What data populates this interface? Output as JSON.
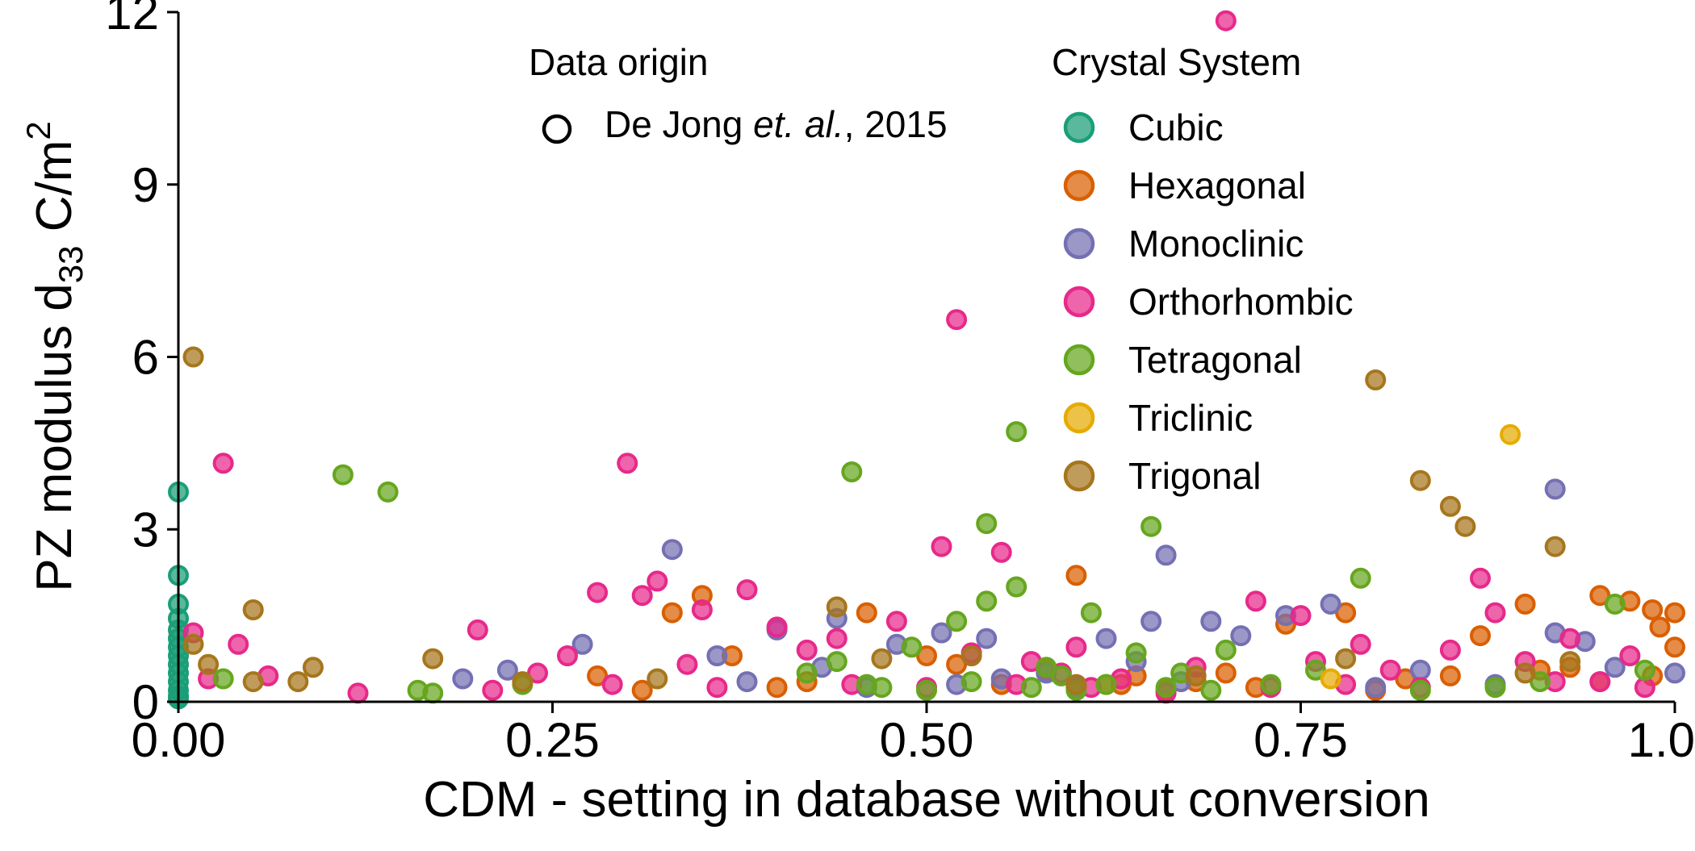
{
  "chart_data": {
    "type": "scatter",
    "title": "",
    "xlabel": "CDM - setting in database without conversion",
    "ylabel": {
      "prefix": "PZ modulus d",
      "sub": "33",
      "middle": " C/m",
      "sup": "2"
    },
    "xlim": [
      0,
      1
    ],
    "ylim": [
      0,
      12
    ],
    "xticks": [
      "0.00",
      "0.25",
      "0.50",
      "0.75",
      "1.00"
    ],
    "yticks": [
      "0",
      "3",
      "6",
      "9",
      "12"
    ],
    "legend_origin": {
      "title": "Data origin",
      "label_before": "De Jong ",
      "label_italic": "et. al.",
      "label_after": ", 2015",
      "shape": "open circle"
    },
    "legend_crystal": {
      "title": "Crystal System",
      "placement": "top-right"
    },
    "series": [
      {
        "name": "Cubic",
        "color": "#1b9e77",
        "points": [
          [
            0.0,
            3.65
          ],
          [
            0.0,
            2.2
          ],
          [
            0.0,
            1.7
          ],
          [
            0.0,
            1.45
          ],
          [
            0.0,
            1.25
          ],
          [
            0.0,
            1.1
          ],
          [
            0.0,
            0.95
          ],
          [
            0.0,
            0.8
          ],
          [
            0.0,
            0.65
          ],
          [
            0.0,
            0.5
          ],
          [
            0.0,
            0.35
          ],
          [
            0.0,
            0.2
          ],
          [
            0.0,
            0.1
          ],
          [
            0.0,
            0.05
          ]
        ]
      },
      {
        "name": "Hexagonal",
        "color": "#d95f02",
        "points": [
          [
            0.33,
            1.55
          ],
          [
            0.35,
            1.85
          ],
          [
            0.37,
            0.8
          ],
          [
            0.42,
            0.35
          ],
          [
            0.46,
            1.55
          ],
          [
            0.5,
            0.8
          ],
          [
            0.52,
            0.65
          ],
          [
            0.58,
            0.55
          ],
          [
            0.6,
            2.2
          ],
          [
            0.63,
            0.3
          ],
          [
            0.66,
            0.2
          ],
          [
            0.7,
            0.5
          ],
          [
            0.74,
            1.35
          ],
          [
            0.78,
            1.55
          ],
          [
            0.82,
            0.4
          ],
          [
            0.87,
            1.15
          ],
          [
            0.9,
            1.7
          ],
          [
            0.91,
            0.55
          ],
          [
            0.95,
            1.85
          ],
          [
            0.97,
            1.75
          ],
          [
            0.985,
            1.6
          ],
          [
            1.0,
            1.55
          ],
          [
            0.99,
            1.3
          ],
          [
            1.0,
            0.95
          ],
          [
            0.985,
            0.45
          ],
          [
            0.95,
            0.35
          ],
          [
            0.31,
            0.2
          ],
          [
            0.28,
            0.45
          ],
          [
            0.4,
            0.25
          ],
          [
            0.55,
            0.3
          ],
          [
            0.62,
            0.3
          ],
          [
            0.64,
            0.45
          ],
          [
            0.68,
            0.35
          ],
          [
            0.72,
            0.25
          ],
          [
            0.8,
            0.2
          ],
          [
            0.85,
            0.45
          ],
          [
            0.93,
            0.6
          ]
        ]
      },
      {
        "name": "Monoclinic",
        "color": "#7570b3",
        "points": [
          [
            0.19,
            0.4
          ],
          [
            0.22,
            0.55
          ],
          [
            0.27,
            1.0
          ],
          [
            0.33,
            2.65
          ],
          [
            0.36,
            0.8
          ],
          [
            0.38,
            0.35
          ],
          [
            0.4,
            1.25
          ],
          [
            0.43,
            0.6
          ],
          [
            0.44,
            1.45
          ],
          [
            0.48,
            1.0
          ],
          [
            0.51,
            1.2
          ],
          [
            0.54,
            1.1
          ],
          [
            0.55,
            0.4
          ],
          [
            0.58,
            0.5
          ],
          [
            0.62,
            1.1
          ],
          [
            0.65,
            1.4
          ],
          [
            0.66,
            2.55
          ],
          [
            0.69,
            1.4
          ],
          [
            0.71,
            1.15
          ],
          [
            0.74,
            1.5
          ],
          [
            0.77,
            1.7
          ],
          [
            0.8,
            0.25
          ],
          [
            0.83,
            0.55
          ],
          [
            0.88,
            0.3
          ],
          [
            0.92,
            3.7
          ],
          [
            0.92,
            1.2
          ],
          [
            0.94,
            1.05
          ],
          [
            0.96,
            0.6
          ],
          [
            1.0,
            0.5
          ],
          [
            0.6,
            0.25
          ],
          [
            0.64,
            0.7
          ],
          [
            0.67,
            0.35
          ],
          [
            0.52,
            0.3
          ],
          [
            0.46,
            0.25
          ]
        ]
      },
      {
        "name": "Orthorhombic",
        "color": "#e7298a",
        "points": [
          [
            0.7,
            11.85
          ],
          [
            0.52,
            6.65
          ],
          [
            0.03,
            4.15
          ],
          [
            0.3,
            4.15
          ],
          [
            0.51,
            2.7
          ],
          [
            0.55,
            2.6
          ],
          [
            0.01,
            1.2
          ],
          [
            0.04,
            1.0
          ],
          [
            0.06,
            0.45
          ],
          [
            0.2,
            1.25
          ],
          [
            0.28,
            1.9
          ],
          [
            0.31,
            1.85
          ],
          [
            0.32,
            2.1
          ],
          [
            0.35,
            1.6
          ],
          [
            0.38,
            1.95
          ],
          [
            0.4,
            1.3
          ],
          [
            0.42,
            0.9
          ],
          [
            0.44,
            1.1
          ],
          [
            0.48,
            1.4
          ],
          [
            0.53,
            0.85
          ],
          [
            0.57,
            0.7
          ],
          [
            0.59,
            0.5
          ],
          [
            0.6,
            0.95
          ],
          [
            0.63,
            0.4
          ],
          [
            0.68,
            0.6
          ],
          [
            0.72,
            1.75
          ],
          [
            0.75,
            1.5
          ],
          [
            0.76,
            0.7
          ],
          [
            0.79,
            1.0
          ],
          [
            0.81,
            0.55
          ],
          [
            0.85,
            0.9
          ],
          [
            0.87,
            2.15
          ],
          [
            0.88,
            1.55
          ],
          [
            0.9,
            0.7
          ],
          [
            0.93,
            1.1
          ],
          [
            0.95,
            0.35
          ],
          [
            0.97,
            0.8
          ],
          [
            0.24,
            0.5
          ],
          [
            0.26,
            0.8
          ],
          [
            0.29,
            0.3
          ],
          [
            0.34,
            0.65
          ],
          [
            0.36,
            0.25
          ],
          [
            0.45,
            0.3
          ],
          [
            0.5,
            0.25
          ],
          [
            0.56,
            0.3
          ],
          [
            0.61,
            0.25
          ],
          [
            0.66,
            0.15
          ],
          [
            0.73,
            0.25
          ],
          [
            0.78,
            0.3
          ],
          [
            0.83,
            0.25
          ],
          [
            0.92,
            0.35
          ],
          [
            0.98,
            0.25
          ],
          [
            0.12,
            0.15
          ],
          [
            0.21,
            0.2
          ],
          [
            0.02,
            0.4
          ]
        ]
      },
      {
        "name": "Tetragonal",
        "color": "#66a61e",
        "points": [
          [
            0.11,
            3.95
          ],
          [
            0.14,
            3.65
          ],
          [
            0.45,
            4.0
          ],
          [
            0.56,
            4.7
          ],
          [
            0.54,
            3.1
          ],
          [
            0.65,
            3.05
          ],
          [
            0.03,
            0.4
          ],
          [
            0.16,
            0.2
          ],
          [
            0.17,
            0.15
          ],
          [
            0.23,
            0.3
          ],
          [
            0.42,
            0.5
          ],
          [
            0.44,
            0.7
          ],
          [
            0.46,
            0.3
          ],
          [
            0.49,
            0.95
          ],
          [
            0.52,
            1.4
          ],
          [
            0.54,
            1.75
          ],
          [
            0.56,
            2.0
          ],
          [
            0.58,
            0.6
          ],
          [
            0.59,
            0.45
          ],
          [
            0.61,
            1.55
          ],
          [
            0.62,
            0.3
          ],
          [
            0.64,
            0.85
          ],
          [
            0.67,
            0.5
          ],
          [
            0.7,
            0.9
          ],
          [
            0.73,
            0.3
          ],
          [
            0.76,
            0.55
          ],
          [
            0.79,
            2.15
          ],
          [
            0.83,
            0.2
          ],
          [
            0.88,
            0.25
          ],
          [
            0.91,
            0.35
          ],
          [
            0.96,
            1.7
          ],
          [
            0.98,
            0.55
          ],
          [
            0.47,
            0.25
          ],
          [
            0.5,
            0.2
          ],
          [
            0.53,
            0.35
          ],
          [
            0.57,
            0.25
          ],
          [
            0.6,
            0.2
          ],
          [
            0.66,
            0.25
          ],
          [
            0.69,
            0.2
          ]
        ]
      },
      {
        "name": "Triclinic",
        "color": "#e6ab02",
        "points": [
          [
            0.89,
            4.65
          ],
          [
            0.77,
            0.4
          ]
        ]
      },
      {
        "name": "Trigonal",
        "color": "#a6761d",
        "points": [
          [
            0.01,
            6.0
          ],
          [
            0.8,
            5.6
          ],
          [
            0.83,
            3.85
          ],
          [
            0.85,
            3.4
          ],
          [
            0.86,
            3.05
          ],
          [
            0.92,
            2.7
          ],
          [
            0.05,
            1.6
          ],
          [
            0.02,
            0.65
          ],
          [
            0.05,
            0.35
          ],
          [
            0.08,
            0.35
          ],
          [
            0.09,
            0.6
          ],
          [
            0.17,
            0.75
          ],
          [
            0.23,
            0.35
          ],
          [
            0.32,
            0.4
          ],
          [
            0.44,
            1.65
          ],
          [
            0.47,
            0.75
          ],
          [
            0.53,
            0.8
          ],
          [
            0.6,
            0.3
          ],
          [
            0.68,
            0.45
          ],
          [
            0.78,
            0.75
          ],
          [
            0.9,
            0.5
          ],
          [
            0.93,
            0.7
          ],
          [
            0.01,
            1.0
          ]
        ]
      }
    ]
  }
}
